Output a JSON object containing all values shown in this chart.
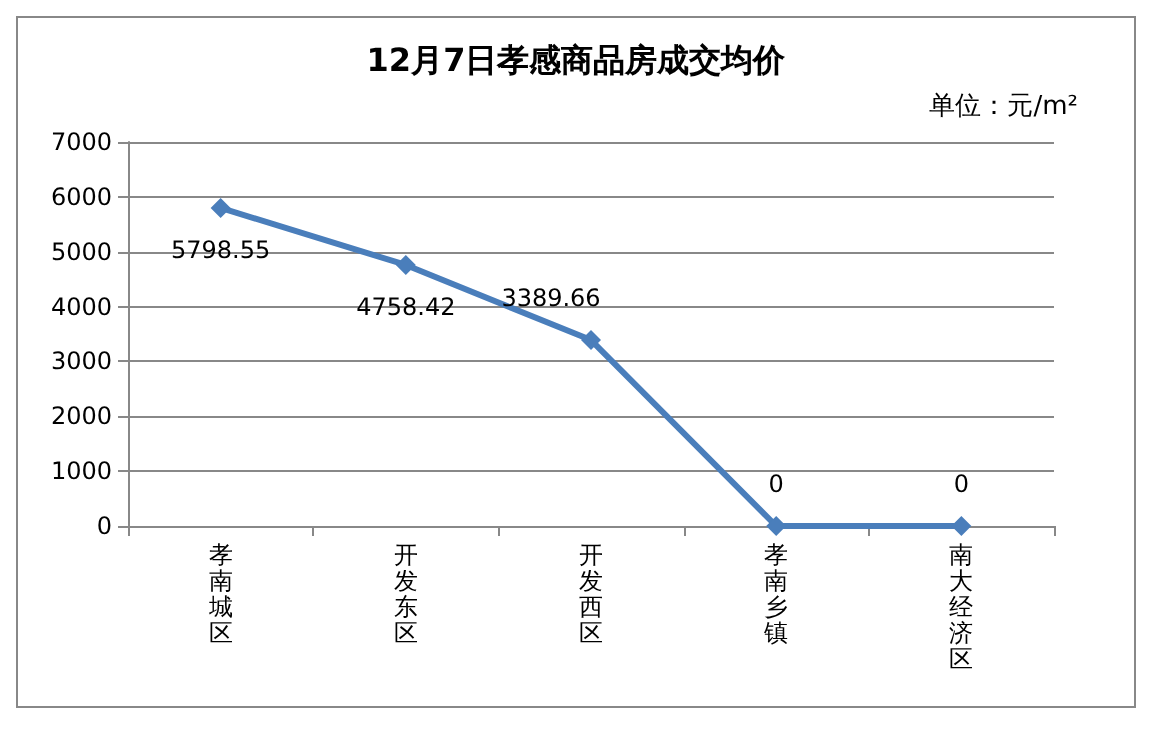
{
  "chart_data": {
    "type": "line",
    "title": "12月7日孝感商品房成交均价",
    "annotations": [
      "单位：元/m²"
    ],
    "categories": [
      "孝南城区",
      "开发东区",
      "开发西区",
      "孝南乡镇",
      "南大经济区"
    ],
    "values": [
      5798.55,
      4758.42,
      3389.66,
      0,
      0
    ],
    "color": "#4a7ebb",
    "marker": "diamond",
    "data_labels": true,
    "ylim": [
      0,
      7000
    ],
    "yticks": [
      0,
      1000,
      2000,
      3000,
      4000,
      5000,
      6000,
      7000
    ],
    "grid": "y"
  }
}
